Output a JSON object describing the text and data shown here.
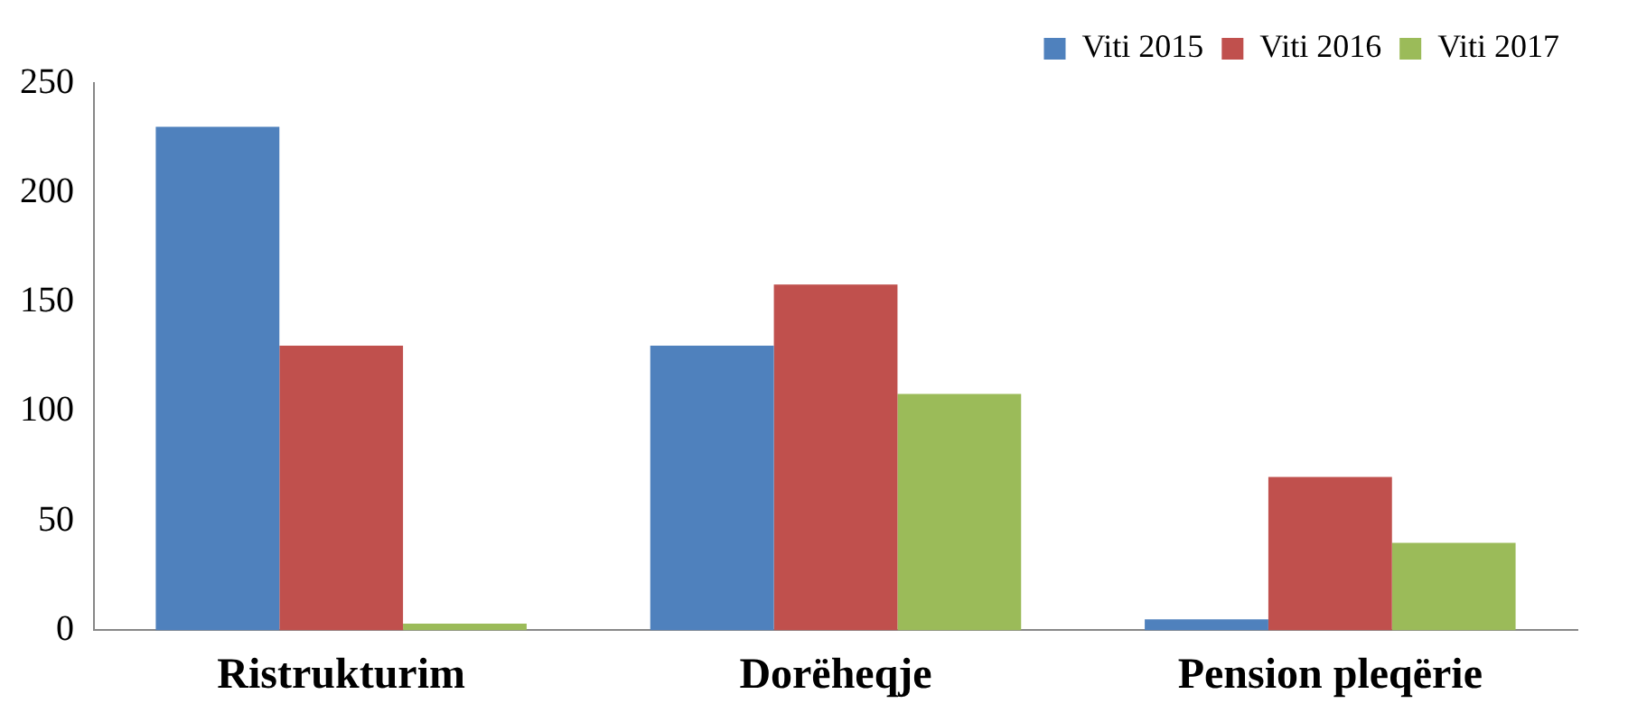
{
  "chart_data": {
    "type": "bar",
    "categories": [
      "Ristrukturim",
      "Dorëheqje",
      "Pension pleqërie"
    ],
    "series": [
      {
        "name": "Viti 2015",
        "color": "#4f81bd",
        "values": [
          230,
          130,
          5
        ]
      },
      {
        "name": "Viti 2016",
        "color": "#c0504d",
        "values": [
          130,
          158,
          70
        ]
      },
      {
        "name": "Viti 2017",
        "color": "#9bbb59",
        "values": [
          3,
          108,
          40
        ]
      }
    ],
    "ylim": [
      0,
      250
    ],
    "yticks": [
      0,
      50,
      100,
      150,
      200,
      250
    ],
    "grid": false,
    "legend": "top right"
  }
}
